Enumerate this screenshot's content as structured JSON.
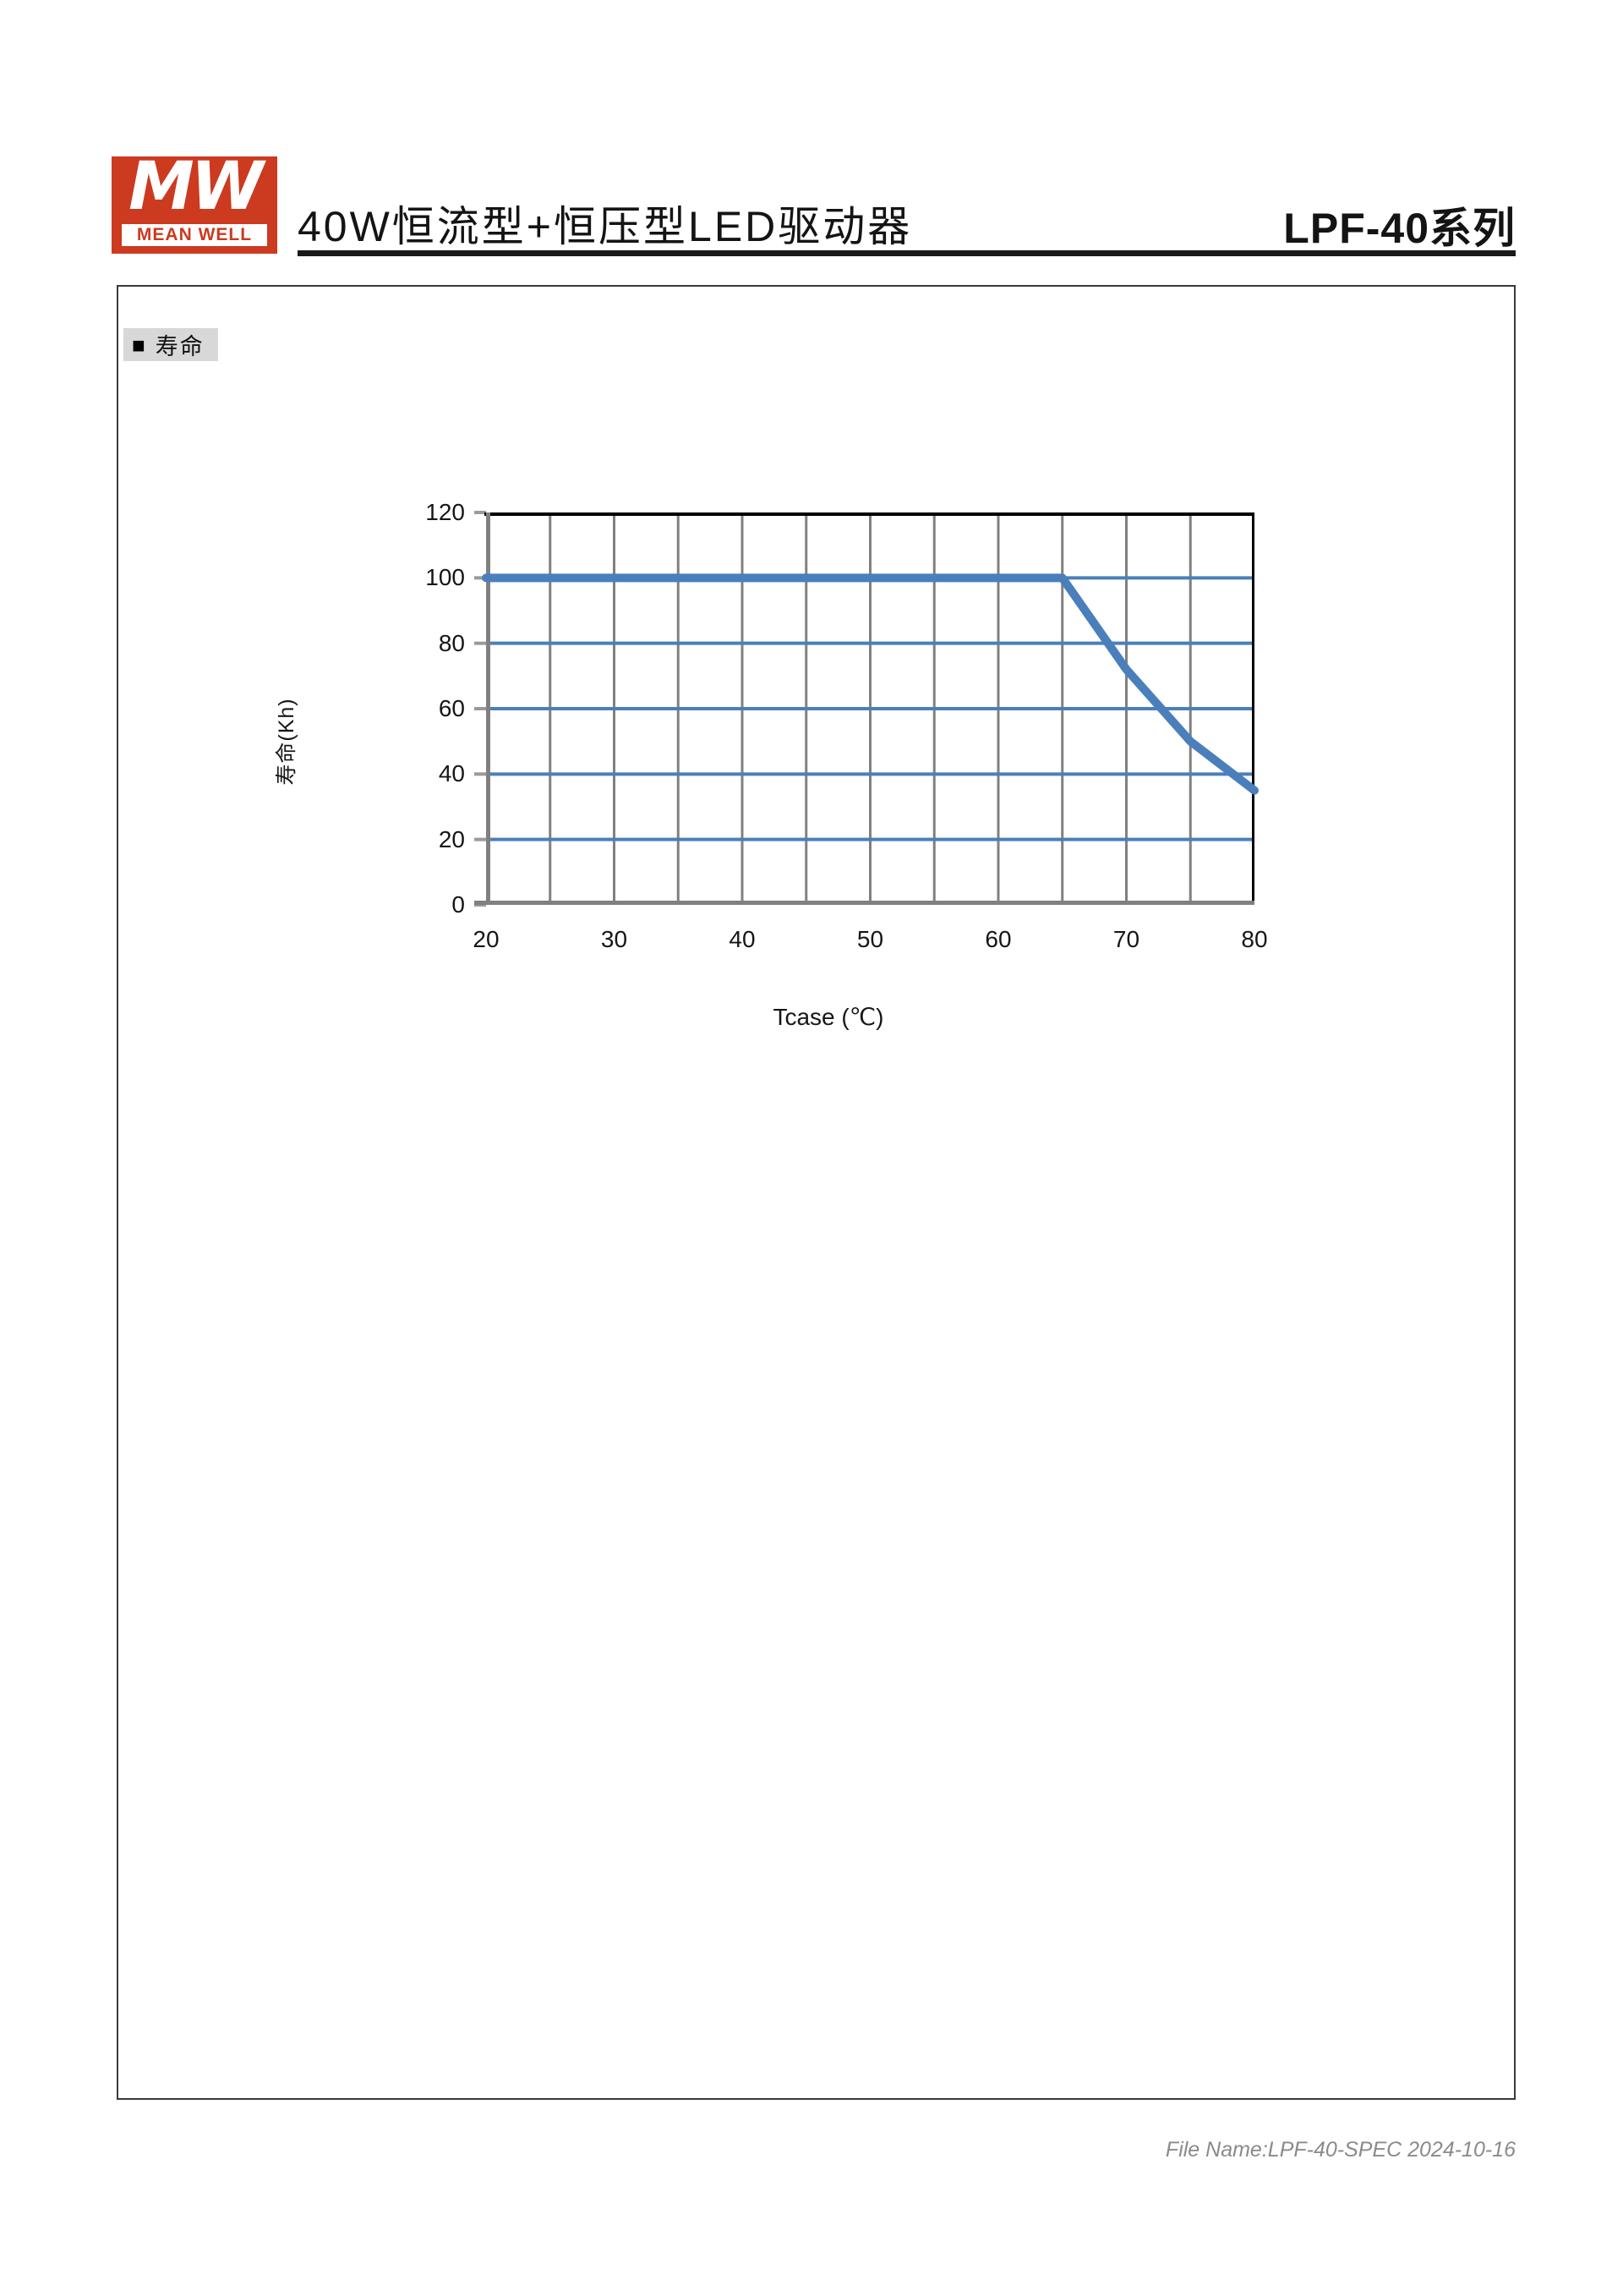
{
  "page": {
    "header": {
      "logo_mw": "MW",
      "logo_brand": "MEAN WELL",
      "brand_color": "#cc3a20",
      "title": "40W恒流型+恒压型LED驱动器",
      "series": "LPF-40系列"
    },
    "section_marker": "■",
    "section_label": "寿命",
    "footer": "File Name:LPF-40-SPEC  2024-10-16"
  },
  "chart_data": {
    "type": "line",
    "title": "",
    "xlabel": "Tcase (℃)",
    "ylabel": "寿命(Kh)",
    "x": [
      20,
      65,
      70,
      75,
      80
    ],
    "series": [
      {
        "name": "寿命",
        "values": [
          100,
          100,
          72,
          50,
          35
        ]
      }
    ],
    "xlim": [
      20,
      80
    ],
    "ylim": [
      0,
      120
    ],
    "x_ticks": [
      20,
      30,
      40,
      50,
      60,
      70,
      80
    ],
    "y_ticks": [
      0,
      20,
      40,
      60,
      80,
      100,
      120
    ],
    "x_minor_grid_step": 5,
    "grid": {
      "on": true,
      "horizontal_color": "#4a7fbc",
      "vertical_color": "#808080"
    },
    "line_color": "#4a7fbc",
    "axis_color": "#808080",
    "border_color": "#000000",
    "tick_color": "#9a9a9a",
    "legend_position": "none"
  }
}
